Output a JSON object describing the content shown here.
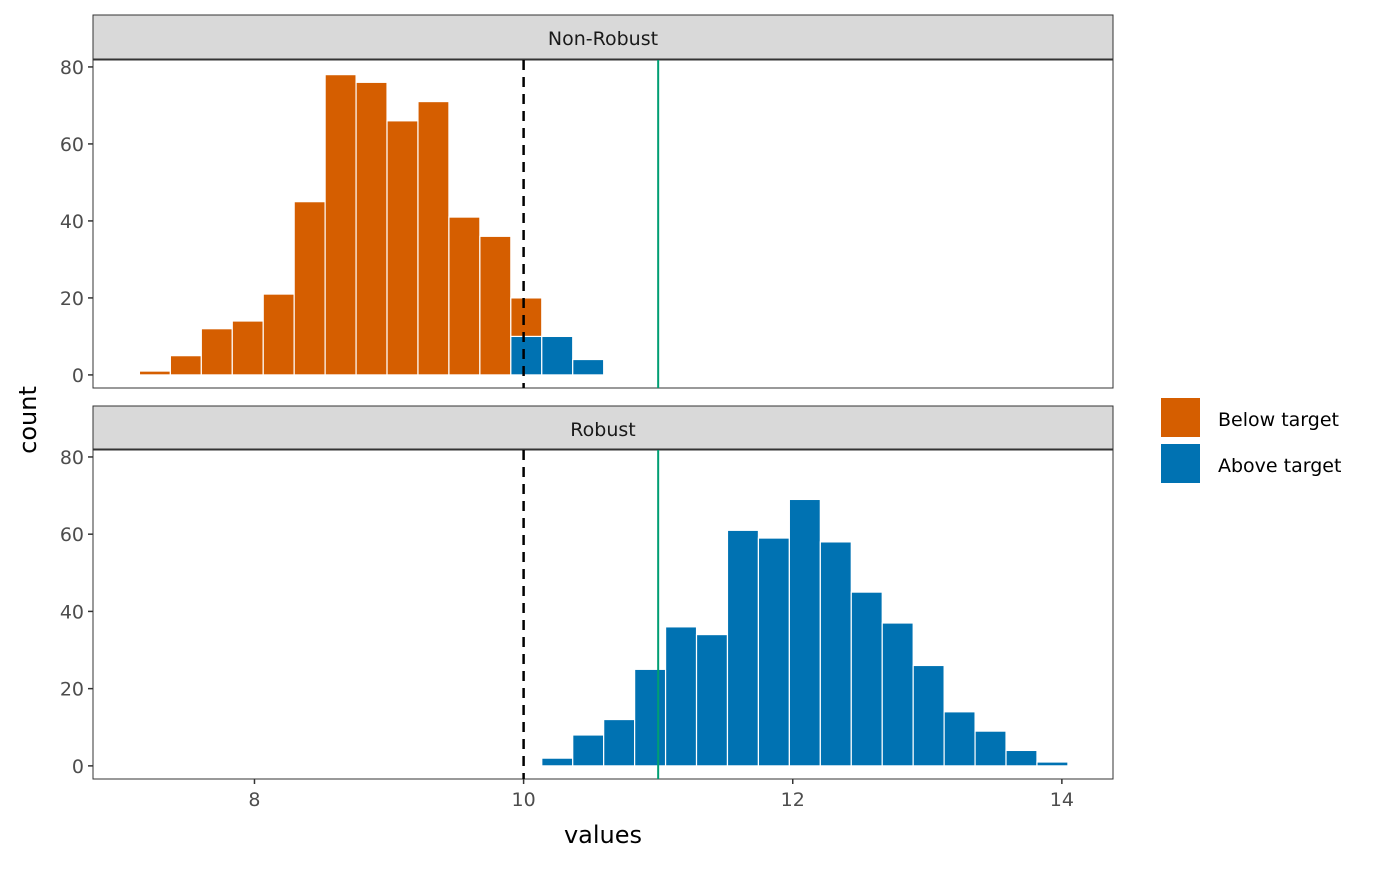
{
  "chart_data": {
    "type": "bar",
    "subtype": "stacked histogram, faceted",
    "xlabel": "values",
    "ylabel": "count",
    "xlim": [
      6.8,
      14.38
    ],
    "ylim": [
      -3.4,
      81.8
    ],
    "x_ticks": [
      8,
      10,
      12,
      14
    ],
    "y_ticks": [
      0,
      20,
      40,
      60,
      80
    ],
    "grid": false,
    "bin_width": 0.23,
    "reference_lines": [
      {
        "x": 10,
        "style": "dashed",
        "color": "#000000"
      },
      {
        "x": 11,
        "style": "solid",
        "color": "#009E73"
      }
    ],
    "legend": {
      "placement": "right",
      "entries": [
        {
          "label": "Below target",
          "color": "#D55E00"
        },
        {
          "label": "Above target",
          "color": "#0072B2"
        }
      ]
    },
    "facets": [
      {
        "title": "Non-Robust",
        "bin_centers": [
          7.26,
          7.49,
          7.72,
          7.95,
          8.18,
          8.41,
          8.64,
          8.87,
          9.1,
          9.33,
          9.56,
          9.79,
          10.02,
          10.25,
          10.48
        ],
        "series": [
          {
            "name": "Below target",
            "values": [
              1,
              5,
              12,
              14,
              21,
              45,
              78,
              76,
              66,
              71,
              41,
              36,
              10,
              0,
              0
            ]
          },
          {
            "name": "Above target",
            "values": [
              0,
              0,
              0,
              0,
              0,
              0,
              0,
              0,
              0,
              0,
              0,
              0,
              10,
              10,
              4
            ]
          }
        ]
      },
      {
        "title": "Robust",
        "bin_centers": [
          10.25,
          10.48,
          10.71,
          10.94,
          11.17,
          11.4,
          11.63,
          11.86,
          12.09,
          12.32,
          12.55,
          12.78,
          13.01,
          13.24,
          13.47,
          13.7,
          13.93
        ],
        "series": [
          {
            "name": "Below target",
            "values": [
              0,
              0,
              0,
              0,
              0,
              0,
              0,
              0,
              0,
              0,
              0,
              0,
              0,
              0,
              0,
              0,
              0
            ]
          },
          {
            "name": "Above target",
            "values": [
              2,
              8,
              12,
              25,
              36,
              34,
              61,
              59,
              69,
              58,
              45,
              37,
              26,
              14,
              9,
              4,
              1
            ]
          }
        ]
      }
    ]
  }
}
